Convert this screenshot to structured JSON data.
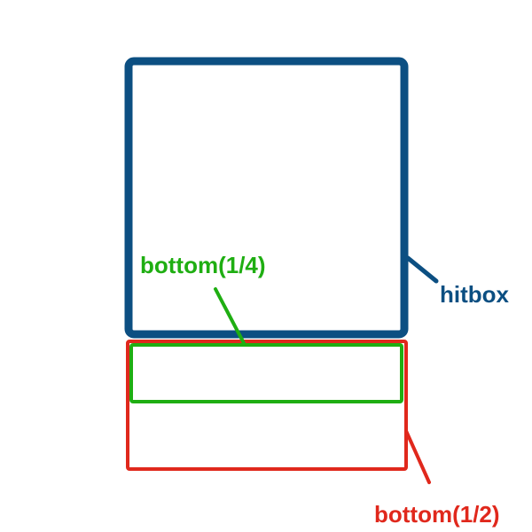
{
  "colors": {
    "background": "#ffffff",
    "hitbox": "#0c4f82",
    "bottom_quarter": "#1fae12",
    "bottom_half": "#e0281c"
  },
  "labels": {
    "hitbox": "hitbox",
    "bottom_quarter": "bottom(1/4)",
    "bottom_half": "bottom(1/2)"
  }
}
